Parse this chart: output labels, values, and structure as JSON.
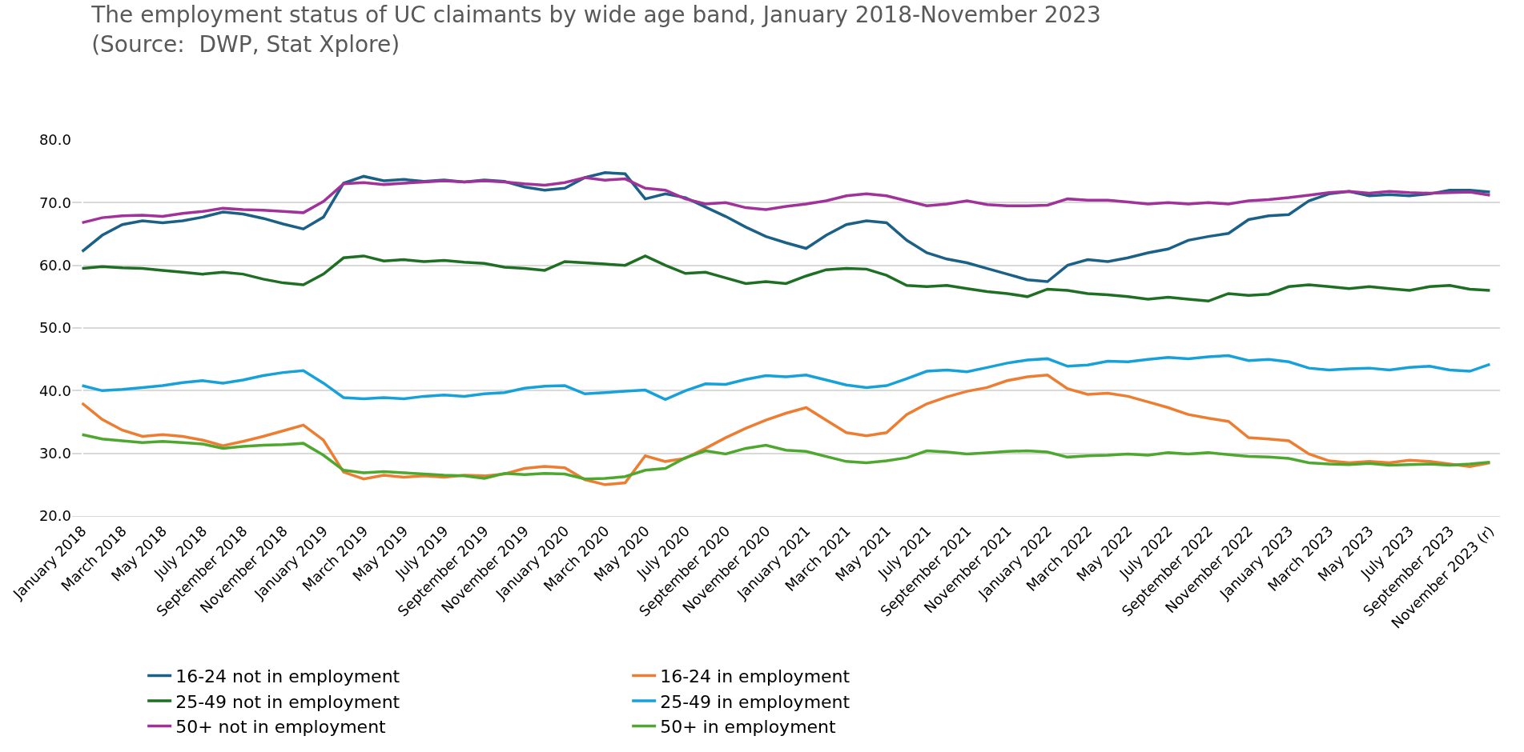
{
  "chart_data": {
    "type": "line",
    "title": "The employment status of UC claimants by wide age band, January 2018-November 2023\n(Source:  DWP, Stat Xplore)",
    "categories": [
      "January 2018",
      null,
      "March 2018",
      null,
      "May 2018",
      null,
      "July 2018",
      null,
      "September 2018",
      null,
      "November 2018",
      null,
      "January 2019",
      null,
      "March 2019",
      null,
      "May 2019",
      null,
      "July 2019",
      null,
      "September 2019",
      null,
      "November 2019",
      null,
      "January 2020",
      null,
      "March 2020",
      null,
      "May 2020",
      null,
      "July 2020",
      null,
      "September 2020",
      null,
      "November 2020",
      null,
      "January 2021",
      null,
      "March 2021",
      null,
      "May 2021",
      null,
      "July 2021",
      null,
      "September 2021",
      null,
      "November 2021",
      null,
      "January 2022",
      null,
      "March 2022",
      null,
      "May 2022",
      null,
      "July 2022",
      null,
      "September 2022",
      null,
      "November 2022",
      null,
      "January 2023",
      null,
      "March 2023",
      null,
      "May 2023",
      null,
      "July 2023",
      null,
      "September 2023",
      null,
      "November 2023 (r)"
    ],
    "ylim": [
      20,
      80
    ],
    "yticks": [
      {
        "value": 20,
        "label": "20.0"
      },
      {
        "value": 30,
        "label": "30.0"
      },
      {
        "value": 40,
        "label": "40.0"
      },
      {
        "value": 50,
        "label": "50.0"
      },
      {
        "value": 60,
        "label": "60.0"
      },
      {
        "value": 70,
        "label": "70.0"
      },
      {
        "value": 80,
        "label": "80.0"
      }
    ],
    "grid": "y",
    "legend": "bottom",
    "marker": "none",
    "line_style": "solid",
    "series": [
      {
        "name": "16-24 not in employment",
        "color": "#1b6086",
        "values": [
          62.2,
          64.8,
          66.5,
          67.1,
          66.8,
          67.1,
          67.7,
          68.5,
          68.2,
          67.5,
          66.6,
          65.8,
          67.7,
          73.1,
          74.2,
          73.5,
          73.7,
          73.4,
          73.6,
          73.3,
          73.6,
          73.4,
          72.5,
          72.0,
          72.3,
          74.0,
          74.8,
          74.6,
          70.6,
          71.4,
          70.8,
          69.3,
          67.8,
          66.1,
          64.6,
          63.6,
          62.7,
          64.8,
          66.5,
          67.1,
          66.8,
          64.0,
          62.0,
          61.0,
          60.4,
          59.5,
          58.6,
          57.7,
          57.4,
          60.0,
          60.9,
          60.6,
          61.2,
          62.0,
          62.6,
          64.0,
          64.6,
          65.1,
          67.3,
          67.9,
          68.1,
          70.3,
          71.4,
          71.8,
          71.1,
          71.3,
          71.1,
          71.4,
          72.0,
          72.0,
          71.7
        ]
      },
      {
        "name": "16-24 in employment",
        "color": "#ed7d31",
        "values": [
          38.0,
          35.4,
          33.7,
          32.7,
          33.0,
          32.7,
          32.1,
          31.2,
          31.9,
          32.7,
          33.6,
          34.5,
          32.1,
          27.0,
          25.9,
          26.5,
          26.2,
          26.4,
          26.2,
          26.5,
          26.4,
          26.7,
          27.6,
          27.9,
          27.7,
          25.8,
          25.0,
          25.3,
          29.6,
          28.7,
          29.2,
          30.8,
          32.5,
          34.0,
          35.3,
          36.4,
          37.3,
          35.3,
          33.3,
          32.8,
          33.3,
          36.2,
          37.9,
          39.0,
          39.9,
          40.5,
          41.6,
          42.2,
          42.5,
          40.3,
          39.4,
          39.6,
          39.1,
          38.2,
          37.3,
          36.2,
          35.6,
          35.1,
          32.5,
          32.3,
          32.0,
          29.9,
          28.8,
          28.5,
          28.7,
          28.5,
          28.9,
          28.7,
          28.3,
          27.9,
          28.5
        ]
      },
      {
        "name": "25-49 not in employment",
        "color": "#1e6e23",
        "values": [
          59.5,
          59.8,
          59.6,
          59.5,
          59.2,
          58.9,
          58.6,
          58.9,
          58.6,
          57.8,
          57.2,
          56.9,
          58.6,
          61.2,
          61.5,
          60.7,
          60.9,
          60.6,
          60.8,
          60.5,
          60.3,
          59.7,
          59.5,
          59.2,
          60.6,
          60.4,
          60.2,
          60.0,
          61.5,
          60.0,
          58.7,
          58.9,
          58.0,
          57.1,
          57.4,
          57.1,
          58.3,
          59.3,
          59.5,
          59.4,
          58.4,
          56.8,
          56.6,
          56.8,
          56.3,
          55.8,
          55.5,
          55.0,
          56.2,
          56.0,
          55.5,
          55.3,
          55.0,
          54.6,
          54.9,
          54.6,
          54.3,
          55.5,
          55.2,
          55.4,
          56.6,
          56.9,
          56.6,
          56.3,
          56.6,
          56.3,
          56.0,
          56.6,
          56.8,
          56.2,
          56.0
        ]
      },
      {
        "name": "25-49 in employment",
        "color": "#17a1da",
        "values": [
          40.8,
          40.0,
          40.2,
          40.5,
          40.8,
          41.3,
          41.6,
          41.2,
          41.7,
          42.4,
          42.9,
          43.2,
          41.2,
          38.9,
          38.7,
          38.9,
          38.7,
          39.1,
          39.3,
          39.1,
          39.5,
          39.7,
          40.4,
          40.7,
          40.8,
          39.5,
          39.7,
          39.9,
          40.1,
          38.6,
          40.0,
          41.1,
          41.0,
          41.8,
          42.4,
          42.2,
          42.5,
          41.7,
          40.9,
          40.5,
          40.8,
          41.9,
          43.1,
          43.3,
          43.0,
          43.7,
          44.4,
          44.9,
          45.1,
          43.9,
          44.1,
          44.7,
          44.6,
          45.0,
          45.3,
          45.1,
          45.4,
          45.6,
          44.8,
          45.0,
          44.6,
          43.6,
          43.3,
          43.5,
          43.6,
          43.3,
          43.7,
          43.9,
          43.3,
          43.1,
          44.2
        ]
      },
      {
        "name": "50+ not in employment",
        "color": "#a0329a",
        "values": [
          66.8,
          67.6,
          67.9,
          68.0,
          67.8,
          68.3,
          68.6,
          69.1,
          68.9,
          68.8,
          68.6,
          68.4,
          70.2,
          73.0,
          73.2,
          72.9,
          73.1,
          73.3,
          73.5,
          73.3,
          73.5,
          73.3,
          73.0,
          72.8,
          73.2,
          74.0,
          73.6,
          73.8,
          72.3,
          72.0,
          70.6,
          69.8,
          70.0,
          69.2,
          68.9,
          69.4,
          69.8,
          70.3,
          71.1,
          71.4,
          71.1,
          70.3,
          69.5,
          69.8,
          70.3,
          69.7,
          69.5,
          69.5,
          69.6,
          70.6,
          70.4,
          70.4,
          70.1,
          69.8,
          70.0,
          69.8,
          70.0,
          69.8,
          70.3,
          70.5,
          70.8,
          71.2,
          71.6,
          71.8,
          71.5,
          71.8,
          71.6,
          71.5,
          71.6,
          71.7,
          71.2
        ]
      },
      {
        "name": "50+ in employment",
        "color": "#4ea72e",
        "values": [
          33.0,
          32.3,
          32.0,
          31.7,
          31.9,
          31.7,
          31.5,
          30.8,
          31.1,
          31.3,
          31.4,
          31.6,
          29.7,
          27.3,
          26.9,
          27.1,
          26.9,
          26.7,
          26.5,
          26.4,
          26.0,
          26.8,
          26.6,
          26.8,
          26.7,
          25.9,
          26.0,
          26.3,
          27.3,
          27.6,
          29.3,
          30.4,
          29.9,
          30.8,
          31.3,
          30.5,
          30.3,
          29.5,
          28.7,
          28.5,
          28.8,
          29.3,
          30.4,
          30.2,
          29.9,
          30.1,
          30.3,
          30.4,
          30.2,
          29.4,
          29.6,
          29.7,
          29.9,
          29.7,
          30.1,
          29.9,
          30.1,
          29.8,
          29.5,
          29.4,
          29.2,
          28.5,
          28.3,
          28.2,
          28.4,
          28.1,
          28.2,
          28.3,
          28.1,
          28.3,
          28.6
        ]
      }
    ]
  }
}
